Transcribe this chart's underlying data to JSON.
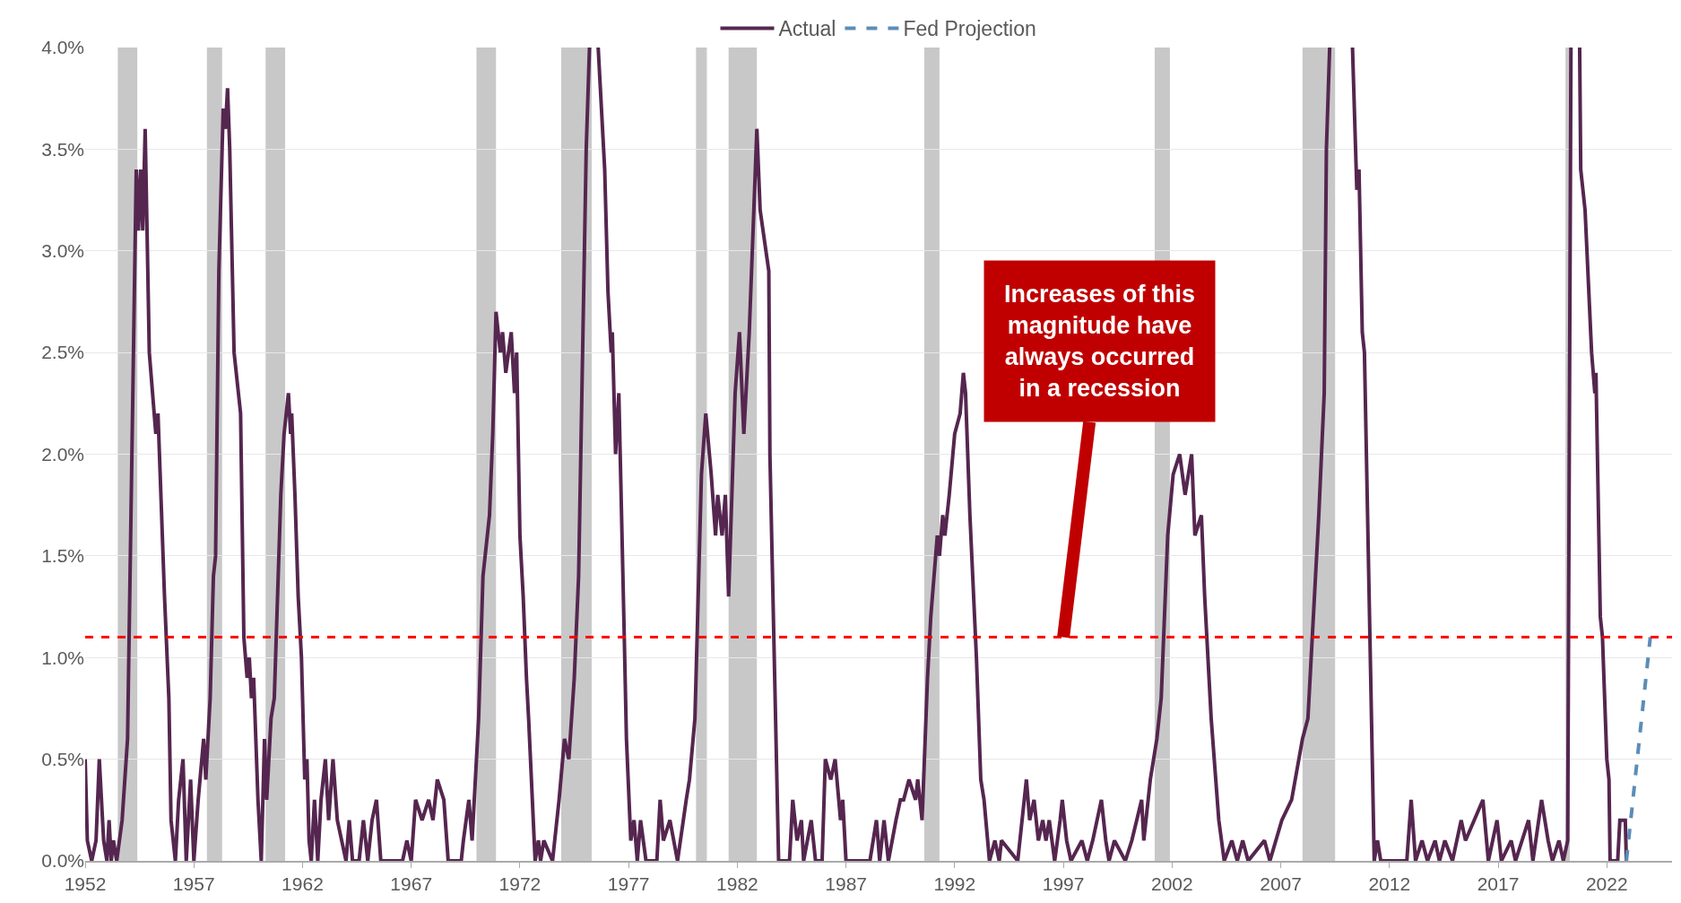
{
  "chart_data": {
    "type": "line",
    "xlim": [
      1952,
      2025
    ],
    "xticks": [
      1952,
      1957,
      1962,
      1967,
      1972,
      1977,
      1982,
      1987,
      1992,
      1997,
      2002,
      2007,
      2012,
      2017,
      2022
    ],
    "ylim": [
      0,
      4
    ],
    "yticks": [
      {
        "value": 0,
        "label": "0.0%"
      },
      {
        "value": 0.5,
        "label": "0.5%"
      },
      {
        "value": 1,
        "label": "1.0%"
      },
      {
        "value": 1.5,
        "label": "1.5%"
      },
      {
        "value": 2,
        "label": "2.0%"
      },
      {
        "value": 2.5,
        "label": "2.5%"
      },
      {
        "value": 3,
        "label": "3.0%"
      },
      {
        "value": 3.5,
        "label": "3.5%"
      },
      {
        "value": 4,
        "label": "4.0%"
      }
    ],
    "grid": "y",
    "legend": "top",
    "marker": "none",
    "series": [
      {
        "name": "Actual",
        "color": "#55264f",
        "line_style": "solid",
        "x": [
          1952.0,
          1952.1,
          1952.3,
          1952.5,
          1952.65,
          1952.85,
          1953.0,
          1953.1,
          1953.2,
          1953.3,
          1953.45,
          1953.7,
          1953.95,
          1954.15,
          1954.35,
          1954.45,
          1954.55,
          1954.65,
          1954.76,
          1954.95,
          1955.25,
          1955.35,
          1955.65,
          1955.85,
          1955.95,
          1956.15,
          1956.3,
          1956.5,
          1956.65,
          1956.85,
          1957.0,
          1957.2,
          1957.45,
          1957.55,
          1957.75,
          1957.9,
          1958.0,
          1958.15,
          1958.35,
          1958.45,
          1958.55,
          1958.65,
          1958.85,
          1959.15,
          1959.3,
          1959.45,
          1959.55,
          1959.65,
          1959.75,
          1959.95,
          1960.1,
          1960.25,
          1960.35,
          1960.55,
          1960.7,
          1960.85,
          1961.0,
          1961.15,
          1961.35,
          1961.45,
          1961.5,
          1961.65,
          1961.8,
          1961.95,
          1962.1,
          1962.2,
          1962.3,
          1962.4,
          1962.55,
          1962.7,
          1962.85,
          1963.05,
          1963.2,
          1963.4,
          1963.6,
          1963.8,
          1964.0,
          1964.15,
          1964.3,
          1964.6,
          1964.8,
          1965.0,
          1965.2,
          1965.4,
          1965.6,
          1966.6,
          1966.8,
          1967.0,
          1967.2,
          1967.5,
          1967.8,
          1968.0,
          1968.2,
          1968.5,
          1968.7,
          1969.3,
          1969.4,
          1969.65,
          1969.8,
          1970.1,
          1970.3,
          1970.6,
          1970.75,
          1970.9,
          1971.1,
          1971.2,
          1971.35,
          1971.6,
          1971.75,
          1971.85,
          1972.0,
          1972.15,
          1972.3,
          1972.4,
          1972.7,
          1972.85,
          1972.95,
          1973.1,
          1973.5,
          1973.8,
          1974.05,
          1974.25,
          1974.5,
          1974.7,
          1975.05,
          1975.2,
          null,
          1975.6,
          1975.7,
          1975.9,
          1976.05,
          1976.2,
          1976.25,
          1976.4,
          1976.55,
          1976.8,
          1976.9,
          1977.1,
          1977.25,
          1977.4,
          1977.55,
          1977.8,
          1978.3,
          1978.45,
          1978.6,
          1978.9,
          1979.25,
          1979.65,
          1979.8,
          1980.05,
          1980.35,
          1980.55,
          1980.8,
          1981.0,
          1981.1,
          1981.3,
          1981.45,
          1981.6,
          1981.9,
          1982.1,
          1982.3,
          1982.55,
          1982.9,
          1983.05,
          1983.45,
          1983.5,
          1983.9,
          1984.4,
          1984.55,
          1984.75,
          1984.95,
          1985.05,
          1985.4,
          1985.6,
          1985.9,
          1986.05,
          1986.3,
          1986.5,
          1986.75,
          1986.85,
          1987.0,
          1988.1,
          1988.4,
          1988.55,
          1988.75,
          1988.95,
          1989.3,
          1989.5,
          1989.65,
          1989.9,
          1990.2,
          1990.3,
          1990.5,
          1990.75,
          1990.9,
          1991.2,
          1991.3,
          1991.45,
          1991.55,
          1991.75,
          1992.0,
          1992.25,
          1992.4,
          1992.5,
          1992.7,
          1993.0,
          1993.2,
          1993.35,
          1993.6,
          1993.85,
          1994.05,
          1994.15,
          1994.9,
          1995.3,
          1995.45,
          1995.65,
          1995.85,
          1996.05,
          1996.2,
          1996.35,
          1996.6,
          1996.85,
          1996.95,
          1997.15,
          1997.35,
          1997.85,
          1998.1,
          1998.35,
          1998.55,
          1998.75,
          1998.95,
          1999.1,
          1999.35,
          1999.85,
          2000.15,
          2000.6,
          2000.7,
          2001.0,
          2001.3,
          2001.5,
          2001.8,
          2002.05,
          2002.35,
          2002.6,
          2002.9,
          2003.05,
          2003.35,
          2003.5,
          2003.8,
          2004.15,
          2004.4,
          2004.75,
          2005.0,
          2005.25,
          2005.5,
          2006.25,
          2006.5,
          2007.05,
          2007.5,
          2008.0,
          2008.25,
          2008.5,
          2008.75,
          2009.0,
          2009.1,
          2009.25,
          null,
          2010.3,
          2010.5,
          2010.6,
          2010.75,
          2010.85,
          2011.3,
          2011.45,
          2011.6,
          2012.8,
          2013.0,
          2013.2,
          2013.5,
          2013.75,
          2014.1,
          2014.3,
          2014.55,
          2014.9,
          2015.3,
          2015.5,
          2016.3,
          2016.55,
          2016.95,
          2017.15,
          2017.6,
          2017.8,
          2018.4,
          2018.6,
          2019.0,
          2019.3,
          2019.5,
          2019.8,
          2020.0,
          2020.2,
          2020.35,
          null,
          2020.75,
          2020.8,
          2021.0,
          2021.3,
          2021.45,
          2021.5,
          2021.7,
          2021.8,
          2022.0,
          2022.1,
          2022.15,
          2022.5,
          2022.6,
          2022.85,
          2022.9
        ],
        "values": [
          0.5,
          0.1,
          0.0,
          0.1,
          0.5,
          0.1,
          0.0,
          0.2,
          0.0,
          0.1,
          0.0,
          0.2,
          0.6,
          2.0,
          3.4,
          3.1,
          3.4,
          3.1,
          3.6,
          2.5,
          2.1,
          2.2,
          1.3,
          0.8,
          0.2,
          0.0,
          0.3,
          0.5,
          0.0,
          0.4,
          0.0,
          0.3,
          0.6,
          0.4,
          0.8,
          1.4,
          1.5,
          2.9,
          3.7,
          3.6,
          3.8,
          3.5,
          2.5,
          2.2,
          1.1,
          0.9,
          1.0,
          0.8,
          0.9,
          0.3,
          0.0,
          0.6,
          0.3,
          0.7,
          0.8,
          1.3,
          1.8,
          2.1,
          2.3,
          2.1,
          2.2,
          1.8,
          1.3,
          1.0,
          0.4,
          0.5,
          0.1,
          0.0,
          0.3,
          0.0,
          0.3,
          0.5,
          0.2,
          0.5,
          0.2,
          0.1,
          0.0,
          0.2,
          0.0,
          0.0,
          0.2,
          0.0,
          0.2,
          0.3,
          0.0,
          0.0,
          0.1,
          0.0,
          0.3,
          0.2,
          0.3,
          0.2,
          0.4,
          0.3,
          0.0,
          0.0,
          0.1,
          0.3,
          0.1,
          0.7,
          1.4,
          1.7,
          2.1,
          2.7,
          2.5,
          2.6,
          2.4,
          2.6,
          2.3,
          2.5,
          1.6,
          1.3,
          0.9,
          0.7,
          0.0,
          0.1,
          0.0,
          0.1,
          0.0,
          0.3,
          0.6,
          0.5,
          0.9,
          1.4,
          3.5,
          4.0,
          null,
          4.0,
          3.8,
          3.4,
          2.8,
          2.5,
          2.6,
          2.0,
          2.3,
          1.1,
          0.6,
          0.1,
          0.2,
          0.0,
          0.2,
          0.0,
          0.0,
          0.3,
          0.1,
          0.2,
          0.0,
          0.3,
          0.4,
          0.7,
          1.9,
          2.2,
          1.9,
          1.6,
          1.8,
          1.6,
          1.8,
          1.3,
          2.3,
          2.6,
          2.1,
          2.6,
          3.6,
          3.2,
          2.9,
          2.0,
          0.0,
          0.0,
          0.3,
          0.1,
          0.2,
          0.0,
          0.2,
          0.0,
          0.0,
          0.5,
          0.4,
          0.5,
          0.2,
          0.3,
          0.0,
          0.0,
          0.2,
          0.0,
          0.2,
          0.0,
          0.2,
          0.3,
          0.3,
          0.4,
          0.3,
          0.4,
          0.2,
          0.9,
          1.2,
          1.6,
          1.5,
          1.7,
          1.6,
          1.8,
          2.1,
          2.2,
          2.4,
          2.3,
          1.7,
          1.0,
          0.4,
          0.3,
          0.0,
          0.1,
          0.0,
          0.1,
          0.0,
          0.4,
          0.2,
          0.3,
          0.1,
          0.2,
          0.1,
          0.2,
          0.0,
          0.2,
          0.3,
          0.1,
          0.0,
          0.1,
          0.0,
          0.1,
          0.2,
          0.3,
          0.1,
          0.0,
          0.1,
          0.0,
          0.1,
          0.3,
          0.1,
          0.4,
          0.6,
          0.8,
          1.6,
          1.9,
          2.0,
          1.8,
          2.0,
          1.6,
          1.7,
          1.3,
          0.7,
          0.2,
          0.0,
          0.1,
          0.0,
          0.1,
          0.0,
          0.1,
          0.0,
          0.2,
          0.3,
          0.6,
          0.7,
          1.2,
          1.7,
          2.3,
          3.5,
          4.0,
          null,
          4.0,
          3.3,
          3.4,
          2.6,
          2.5,
          0.0,
          0.1,
          0.0,
          0.0,
          0.3,
          0.0,
          0.1,
          0.0,
          0.1,
          0.0,
          0.1,
          0.0,
          0.2,
          0.1,
          0.3,
          0.0,
          0.2,
          0.0,
          0.1,
          0.0,
          0.2,
          0.0,
          0.3,
          0.1,
          0.0,
          0.1,
          0.0,
          0.1,
          4.0,
          null,
          4.0,
          3.4,
          3.2,
          2.5,
          2.3,
          2.4,
          1.2,
          1.1,
          0.5,
          0.4,
          0.0,
          0.0,
          0.2,
          0.2,
          0.0
        ]
      },
      {
        "name": "Fed Projection",
        "color": "#5b8db8",
        "line_style": "dashed",
        "x": [
          2022.9,
          2024.0
        ],
        "values": [
          0.0,
          1.1
        ]
      }
    ],
    "ref_lines": [
      {
        "axis": "y",
        "value": 1.1,
        "color": "#ff0000",
        "line_style": "dashed"
      }
    ],
    "bands": [
      {
        "axis": "x",
        "from": 1953.5,
        "to": 1954.4,
        "color": "#c8c8c8"
      },
      {
        "axis": "x",
        "from": 1957.6,
        "to": 1958.3,
        "color": "#c8c8c8"
      },
      {
        "axis": "x",
        "from": 1960.3,
        "to": 1961.2,
        "color": "#c8c8c8"
      },
      {
        "axis": "x",
        "from": 1970.0,
        "to": 1970.9,
        "color": "#c8c8c8"
      },
      {
        "axis": "x",
        "from": 1973.9,
        "to": 1975.3,
        "color": "#c8c8c8"
      },
      {
        "axis": "x",
        "from": 1980.1,
        "to": 1980.6,
        "color": "#c8c8c8"
      },
      {
        "axis": "x",
        "from": 1981.6,
        "to": 1982.9,
        "color": "#c8c8c8"
      },
      {
        "axis": "x",
        "from": 1990.6,
        "to": 1991.3,
        "color": "#c8c8c8"
      },
      {
        "axis": "x",
        "from": 2001.2,
        "to": 2001.9,
        "color": "#c8c8c8"
      },
      {
        "axis": "x",
        "from": 2008.0,
        "to": 2009.5,
        "color": "#c8c8c8"
      },
      {
        "axis": "x",
        "from": 2020.1,
        "to": 2020.3,
        "color": "#c8c8c8"
      }
    ],
    "annotations": [
      {
        "text": "Increases of this\nmagnitude have\nalways occurred\nin a recession",
        "x": 1997,
        "y": 1.1
      }
    ]
  }
}
